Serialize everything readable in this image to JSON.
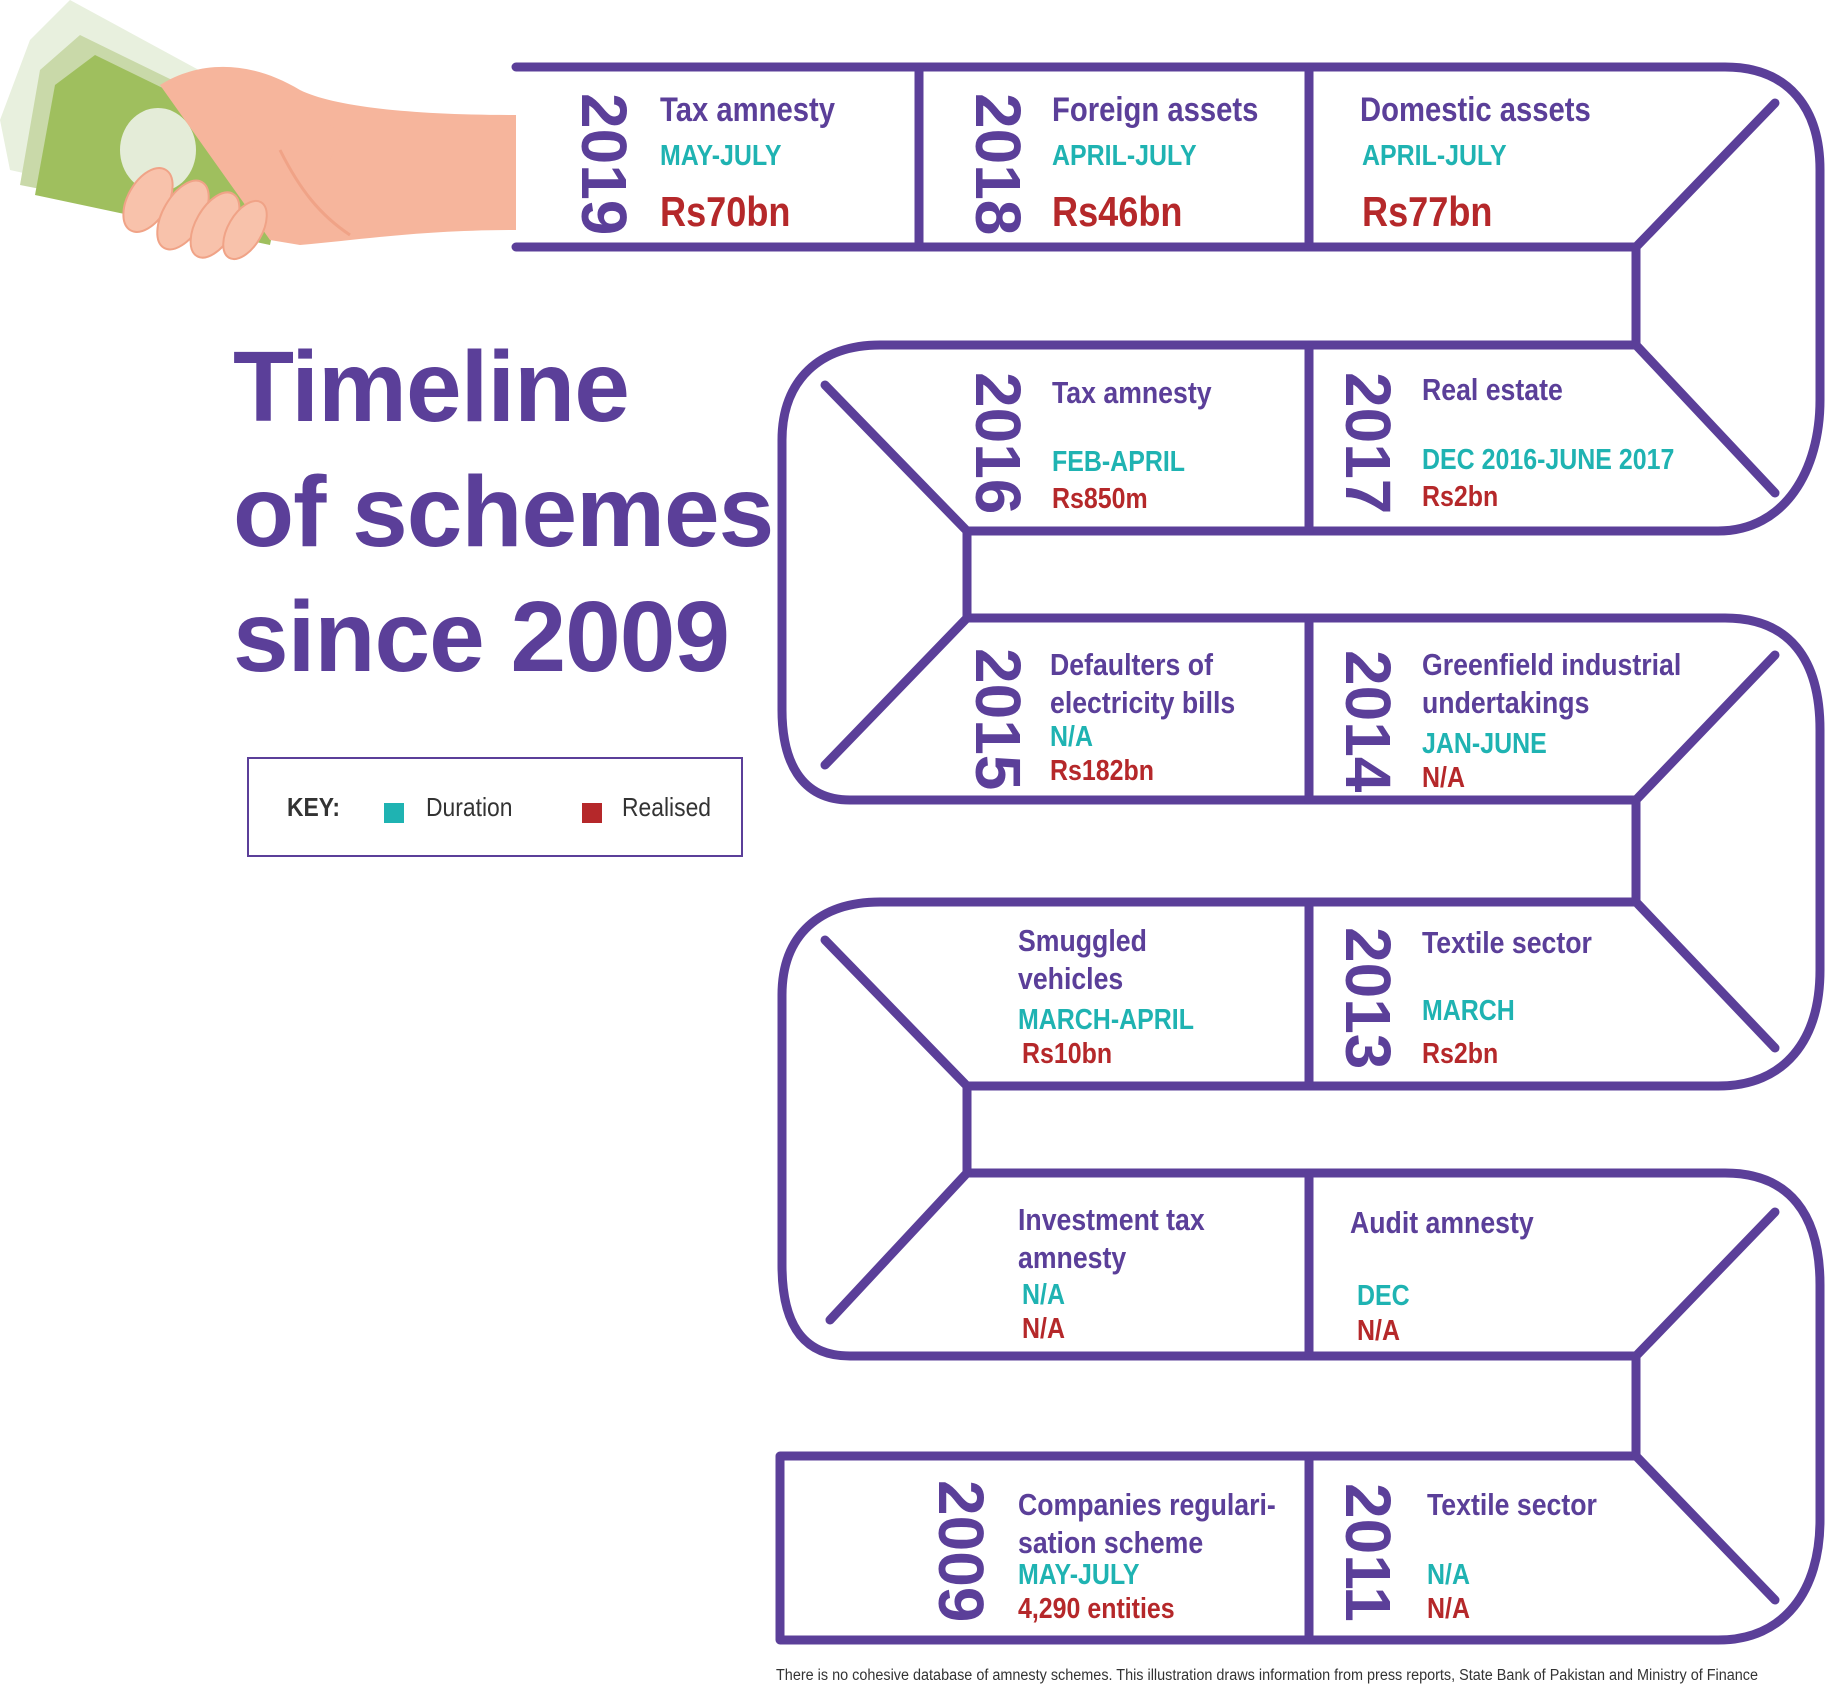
{
  "title": {
    "line1": "Timeline",
    "line2": "of schemes",
    "line3": "since 2009"
  },
  "key": {
    "label": "KEY:",
    "duration_label": "Duration",
    "realised_label": "Realised",
    "duration_color": "#1fb3b2",
    "realised_color": "#b5282a"
  },
  "colors": {
    "path": "#5b3f99",
    "name": "#5b3f99",
    "duration": "#1fb3b2",
    "realised": "#b5282a"
  },
  "icon": "hand-holding-money-icon",
  "schemes": [
    {
      "year": "2019",
      "name": "Tax amnesty",
      "duration": "MAY-JULY",
      "realised": "Rs70bn"
    },
    {
      "year": "2018",
      "name": "Foreign assets",
      "duration": "APRIL-JULY",
      "realised": "Rs46bn"
    },
    {
      "year": "",
      "name": "Domestic assets",
      "duration": "APRIL-JULY",
      "realised": "Rs77bn"
    },
    {
      "year": "2017",
      "name": "Real estate",
      "duration": "DEC 2016-JUNE 2017",
      "realised": "Rs2bn"
    },
    {
      "year": "2016",
      "name": "Tax amnesty",
      "duration": "FEB-APRIL",
      "realised": "Rs850m"
    },
    {
      "year": "2015",
      "name_line1": "Defaulters of",
      "name_line2": "electricity bills",
      "duration": "N/A",
      "realised": "Rs182bn"
    },
    {
      "year": "2014",
      "name_line1": "Greenfield industrial",
      "name_line2": "undertakings",
      "duration": "JAN-JUNE",
      "realised": "N/A"
    },
    {
      "year": "2013",
      "name": "Textile sector",
      "duration": "MARCH",
      "realised": "Rs2bn"
    },
    {
      "year": "",
      "name_line1": "Smuggled",
      "name_line2": "vehicles",
      "duration": "MARCH-APRIL",
      "realised": "Rs10bn"
    },
    {
      "year": "",
      "name_line1": "Investment tax",
      "name_line2": "amnesty",
      "duration": "N/A",
      "realised": "N/A"
    },
    {
      "year": "",
      "name": "Audit amnesty",
      "duration": "DEC",
      "realised": "N/A"
    },
    {
      "year": "2011",
      "name": "Textile sector",
      "duration": "N/A",
      "realised": "N/A"
    },
    {
      "year": "2009",
      "name_line1": "Companies regulari-",
      "name_line2": "sation scheme",
      "duration": "MAY-JULY",
      "realised": "4,290 entities"
    }
  ],
  "footnote": "There is no cohesive database of amnesty schemes. This illustration draws information from press reports, State Bank of Pakistan and Ministry of Finance"
}
